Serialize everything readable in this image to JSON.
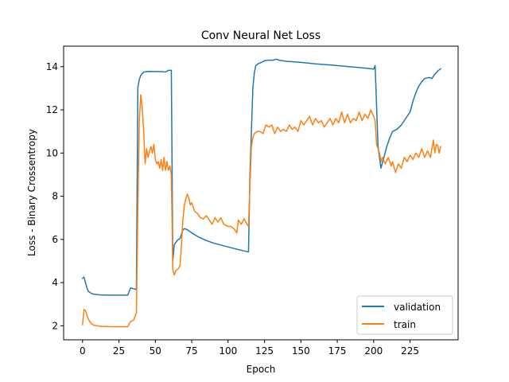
{
  "chart_data": {
    "type": "line",
    "title": "Conv Neural Net Loss",
    "xlabel": "Epoch",
    "ylabel": "Loss - Binary Crossentropy",
    "xlim": [
      -13,
      258
    ],
    "ylim": [
      1.35,
      14.95
    ],
    "xticks": [
      0,
      25,
      50,
      75,
      100,
      125,
      150,
      175,
      200,
      225
    ],
    "yticks": [
      2,
      4,
      6,
      8,
      10,
      12,
      14
    ],
    "grid": false,
    "legend": "lower-right",
    "series": [
      {
        "name": "validation",
        "color": "#1f77b4",
        "points": [
          [
            0,
            4.2
          ],
          [
            1,
            4.25
          ],
          [
            2,
            4.0
          ],
          [
            3,
            3.75
          ],
          [
            4,
            3.6
          ],
          [
            6,
            3.5
          ],
          [
            8,
            3.46
          ],
          [
            12,
            3.43
          ],
          [
            20,
            3.42
          ],
          [
            31,
            3.42
          ],
          [
            33,
            3.75
          ],
          [
            35,
            3.72
          ],
          [
            37,
            3.68
          ],
          [
            38,
            13.05
          ],
          [
            39,
            13.4
          ],
          [
            40,
            13.6
          ],
          [
            42,
            13.75
          ],
          [
            45,
            13.78
          ],
          [
            55,
            13.77
          ],
          [
            57,
            13.75
          ],
          [
            59,
            13.83
          ],
          [
            61,
            13.83
          ],
          [
            62,
            5.0
          ],
          [
            63,
            5.75
          ],
          [
            65,
            5.95
          ],
          [
            67,
            6.05
          ],
          [
            69,
            6.45
          ],
          [
            70,
            6.5
          ],
          [
            72,
            6.45
          ],
          [
            75,
            6.3
          ],
          [
            80,
            6.1
          ],
          [
            85,
            5.95
          ],
          [
            90,
            5.83
          ],
          [
            100,
            5.65
          ],
          [
            110,
            5.48
          ],
          [
            114,
            5.42
          ],
          [
            115,
            9.0
          ],
          [
            117,
            13.0
          ],
          [
            118,
            13.7
          ],
          [
            119,
            14.05
          ],
          [
            121,
            14.15
          ],
          [
            123,
            14.2
          ],
          [
            125,
            14.28
          ],
          [
            128,
            14.3
          ],
          [
            131,
            14.3
          ],
          [
            133,
            14.35
          ],
          [
            135,
            14.3
          ],
          [
            140,
            14.25
          ],
          [
            150,
            14.2
          ],
          [
            160,
            14.13
          ],
          [
            170,
            14.08
          ],
          [
            180,
            14.02
          ],
          [
            190,
            13.96
          ],
          [
            199,
            13.9
          ],
          [
            200,
            13.88
          ],
          [
            201,
            14.05
          ],
          [
            203,
            10.3
          ],
          [
            205,
            9.3
          ],
          [
            207,
            9.8
          ],
          [
            209,
            10.3
          ],
          [
            211,
            10.7
          ],
          [
            213,
            11.0
          ],
          [
            216,
            11.1
          ],
          [
            219,
            11.3
          ],
          [
            221,
            11.5
          ],
          [
            223,
            11.7
          ],
          [
            225,
            11.9
          ],
          [
            227,
            12.4
          ],
          [
            229,
            12.8
          ],
          [
            231,
            13.1
          ],
          [
            233,
            13.3
          ],
          [
            235,
            13.45
          ],
          [
            238,
            13.5
          ],
          [
            240,
            13.45
          ],
          [
            242,
            13.65
          ],
          [
            244,
            13.8
          ],
          [
            246,
            13.9
          ]
        ]
      },
      {
        "name": "train",
        "color": "#ff7f0e",
        "points": [
          [
            0,
            2.05
          ],
          [
            1,
            2.75
          ],
          [
            2,
            2.7
          ],
          [
            3,
            2.5
          ],
          [
            4,
            2.3
          ],
          [
            6,
            2.1
          ],
          [
            8,
            2.02
          ],
          [
            12,
            1.98
          ],
          [
            20,
            1.96
          ],
          [
            31,
            1.96
          ],
          [
            33,
            2.2
          ],
          [
            35,
            2.25
          ],
          [
            37,
            2.6
          ],
          [
            38,
            7.5
          ],
          [
            39,
            11.5
          ],
          [
            40,
            12.7
          ],
          [
            41,
            12.1
          ],
          [
            42,
            11.0
          ],
          [
            43,
            9.5
          ],
          [
            44,
            10.2
          ],
          [
            45,
            9.8
          ],
          [
            46,
            10.1
          ],
          [
            47,
            10.3
          ],
          [
            48,
            10.0
          ],
          [
            49,
            10.4
          ],
          [
            50,
            9.7
          ],
          [
            51,
            9.5
          ],
          [
            52,
            9.6
          ],
          [
            53,
            9.3
          ],
          [
            54,
            9.7
          ],
          [
            55,
            9.2
          ],
          [
            56,
            9.8
          ],
          [
            57,
            9.2
          ],
          [
            58,
            9.6
          ],
          [
            59,
            9.2
          ],
          [
            60,
            9.4
          ],
          [
            61,
            9.0
          ],
          [
            62,
            4.6
          ],
          [
            63,
            4.35
          ],
          [
            64,
            4.55
          ],
          [
            65,
            4.6
          ],
          [
            66,
            4.65
          ],
          [
            67,
            4.8
          ],
          [
            68,
            5.8
          ],
          [
            69,
            7.0
          ],
          [
            70,
            7.6
          ],
          [
            71,
            7.9
          ],
          [
            72,
            8.1
          ],
          [
            73,
            7.9
          ],
          [
            74,
            7.6
          ],
          [
            75,
            7.7
          ],
          [
            77,
            7.3
          ],
          [
            79,
            7.2
          ],
          [
            81,
            7.0
          ],
          [
            83,
            6.95
          ],
          [
            85,
            7.1
          ],
          [
            87,
            6.9
          ],
          [
            89,
            6.7
          ],
          [
            91,
            7.0
          ],
          [
            93,
            6.8
          ],
          [
            95,
            7.0
          ],
          [
            97,
            6.7
          ],
          [
            100,
            6.6
          ],
          [
            102,
            6.6
          ],
          [
            104,
            6.5
          ],
          [
            106,
            6.3
          ],
          [
            107,
            6.9
          ],
          [
            109,
            6.7
          ],
          [
            111,
            6.95
          ],
          [
            113,
            6.7
          ],
          [
            114,
            6.6
          ],
          [
            115,
            8.5
          ],
          [
            116,
            10.3
          ],
          [
            117,
            10.7
          ],
          [
            118,
            10.9
          ],
          [
            120,
            11.0
          ],
          [
            122,
            11.0
          ],
          [
            124,
            10.9
          ],
          [
            126,
            11.3
          ],
          [
            128,
            11.2
          ],
          [
            130,
            11.3
          ],
          [
            132,
            10.9
          ],
          [
            134,
            11.2
          ],
          [
            136,
            11.0
          ],
          [
            138,
            11.1
          ],
          [
            140,
            11.0
          ],
          [
            142,
            11.3
          ],
          [
            144,
            11.1
          ],
          [
            146,
            11.2
          ],
          [
            148,
            11.0
          ],
          [
            150,
            11.5
          ],
          [
            152,
            11.3
          ],
          [
            154,
            11.5
          ],
          [
            156,
            11.7
          ],
          [
            158,
            11.3
          ],
          [
            160,
            11.6
          ],
          [
            162,
            11.4
          ],
          [
            164,
            11.5
          ],
          [
            166,
            11.2
          ],
          [
            168,
            11.4
          ],
          [
            170,
            11.6
          ],
          [
            172,
            11.3
          ],
          [
            174,
            11.6
          ],
          [
            176,
            11.4
          ],
          [
            178,
            11.9
          ],
          [
            180,
            11.4
          ],
          [
            182,
            11.8
          ],
          [
            184,
            11.4
          ],
          [
            186,
            11.6
          ],
          [
            188,
            11.5
          ],
          [
            190,
            11.9
          ],
          [
            192,
            11.5
          ],
          [
            194,
            11.8
          ],
          [
            196,
            11.6
          ],
          [
            198,
            12.0
          ],
          [
            200,
            11.7
          ],
          [
            201,
            11.5
          ],
          [
            202,
            10.4
          ],
          [
            204,
            10.0
          ],
          [
            205,
            9.6
          ],
          [
            206,
            9.8
          ],
          [
            208,
            9.5
          ],
          [
            210,
            9.8
          ],
          [
            212,
            9.4
          ],
          [
            213,
            9.6
          ],
          [
            215,
            9.1
          ],
          [
            217,
            9.5
          ],
          [
            219,
            9.3
          ],
          [
            221,
            9.8
          ],
          [
            223,
            9.6
          ],
          [
            225,
            9.9
          ],
          [
            227,
            9.7
          ],
          [
            229,
            10.0
          ],
          [
            231,
            9.8
          ],
          [
            233,
            10.2
          ],
          [
            235,
            9.8
          ],
          [
            237,
            10.1
          ],
          [
            239,
            9.8
          ],
          [
            241,
            10.6
          ],
          [
            242,
            10.0
          ],
          [
            243,
            10.4
          ],
          [
            244,
            10.35
          ],
          [
            245,
            10.0
          ],
          [
            246,
            10.3
          ]
        ]
      }
    ]
  }
}
